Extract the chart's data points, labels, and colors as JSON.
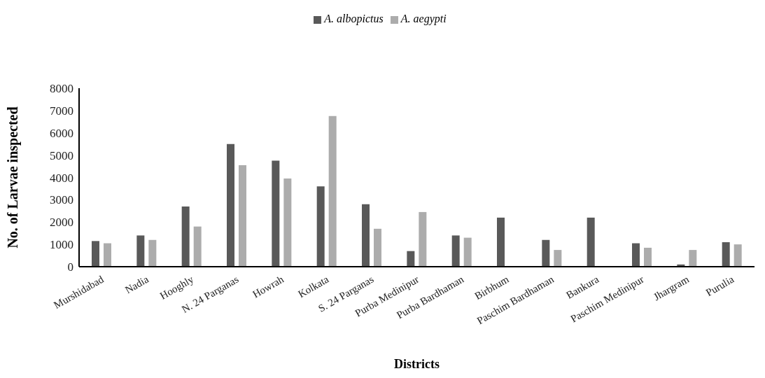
{
  "chart_data": {
    "type": "bar",
    "xlabel": "Districts",
    "ylabel": "No. of Larvae inspected",
    "categories": [
      "Murshidabad",
      "Nadia",
      "Hooghly",
      "N. 24 Parganas",
      "Howrah",
      "Kolkata",
      "S. 24 Parganas",
      "Purba Medinipur",
      "Purba Bardhaman",
      "Birbhum",
      "Paschim Bardhaman",
      "Bankura",
      "Paschim Medinipur",
      "Jhargram",
      "Purulia"
    ],
    "series": [
      {
        "name": "A. albopictus",
        "color": "#595959",
        "values": [
          1150,
          1400,
          2700,
          5500,
          4750,
          3600,
          2800,
          700,
          1400,
          2200,
          1200,
          2200,
          1050,
          100,
          1100
        ]
      },
      {
        "name": "A. aegypti",
        "color": "#acacac",
        "values": [
          1050,
          1200,
          1800,
          4550,
          3950,
          6750,
          1700,
          2450,
          1300,
          0,
          750,
          0,
          850,
          750,
          1000
        ]
      }
    ],
    "ylim": [
      0,
      8000
    ],
    "yticks": [
      0,
      1000,
      2000,
      3000,
      4000,
      5000,
      6000,
      7000,
      8000
    ],
    "grid": false,
    "legend": "top"
  }
}
